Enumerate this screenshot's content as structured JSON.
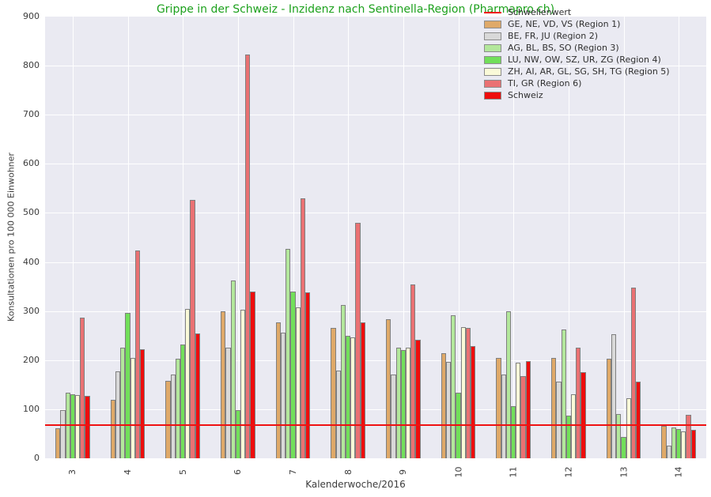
{
  "colors": {
    "plot_bg": "#eaeaf2",
    "grid": "#ffffff",
    "title": "#1da11d",
    "bar_edge": "#7f7f7f",
    "text": "#3c3c3c",
    "threshold": "#ef1212"
  },
  "chart_data": {
    "type": "bar",
    "title": "Grippe in der Schweiz - Inzidenz nach Sentinella-Region (Pharmapro.ch)",
    "xlabel": "Kalenderwoche/2016",
    "ylabel": "Konsultationen pro 100 000 Einwohner",
    "ylim": [
      0,
      900
    ],
    "ytick_step": 100,
    "yticks": [
      0,
      100,
      200,
      300,
      400,
      500,
      600,
      700,
      800,
      900
    ],
    "categories": [
      "3",
      "4",
      "5",
      "6",
      "7",
      "8",
      "9",
      "10",
      "11",
      "12",
      "13",
      "14"
    ],
    "grid": true,
    "legend_position": "top-right",
    "threshold": {
      "label": "Schwellenwert",
      "value": 68,
      "color": "#ef1212"
    },
    "series": [
      {
        "name": "GE, NE, VD, VS (Region 1)",
        "color": "#dfa968",
        "values": [
          61,
          120,
          158,
          299,
          277,
          265,
          284,
          214,
          205,
          204,
          203,
          66
        ]
      },
      {
        "name": "BE, FR, JU (Region 2)",
        "color": "#d9d9d9",
        "values": [
          98,
          177,
          170,
          225,
          256,
          179,
          170,
          196,
          170,
          156,
          253,
          26
        ]
      },
      {
        "name": "AG, BL, BS, SO (Region 3)",
        "color": "#b3e79c",
        "values": [
          133,
          225,
          203,
          362,
          427,
          312,
          226,
          292,
          299,
          262,
          90,
          63
        ]
      },
      {
        "name": "LU, NW, OW, SZ, UR, ZG (Region 4)",
        "color": "#72df5a",
        "values": [
          130,
          296,
          232,
          99,
          339,
          249,
          220,
          134,
          107,
          87,
          44,
          60
        ]
      },
      {
        "name": "ZH, AI, AR, GL, SG, SH, TG (Region 5)",
        "color": "#fafad8",
        "values": [
          129,
          205,
          304,
          303,
          307,
          247,
          226,
          268,
          195,
          131,
          122,
          55
        ]
      },
      {
        "name": "TI, GR (Region 6)",
        "color": "#ea7173",
        "values": [
          287,
          423,
          527,
          823,
          529,
          480,
          355,
          266,
          168,
          226,
          348,
          88
        ]
      },
      {
        "name": "Schweiz",
        "color": "#ee0d0d",
        "values": [
          128,
          222,
          254,
          340,
          338,
          277,
          241,
          228,
          198,
          176,
          156,
          58
        ]
      }
    ]
  }
}
